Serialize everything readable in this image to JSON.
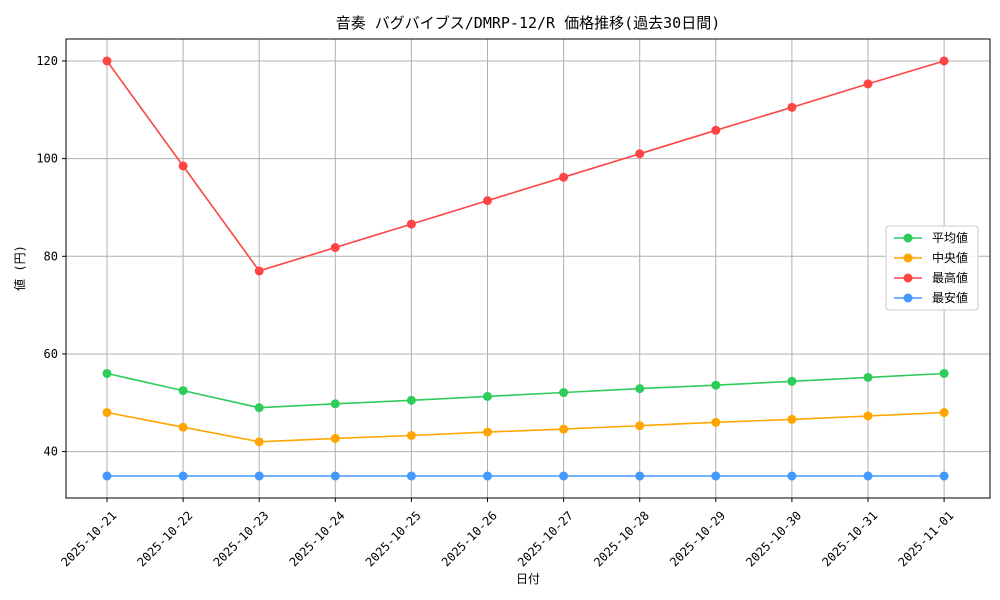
{
  "chart_data": {
    "type": "line",
    "title": "音奏 バグバイブス/DMRP-12/R 価格推移(過去30日間)",
    "xlabel": "日付",
    "ylabel": "値 (円)",
    "categories": [
      "2025-10-21",
      "2025-10-22",
      "2025-10-23",
      "2025-10-24",
      "2025-10-25",
      "2025-10-26",
      "2025-10-27",
      "2025-10-28",
      "2025-10-29",
      "2025-10-30",
      "2025-10-31",
      "2025-11-01"
    ],
    "ylim": [
      30.5,
      124.5
    ],
    "yticks": [
      40,
      60,
      80,
      100,
      120
    ],
    "grid": true,
    "legend_position": "center-right",
    "series": [
      {
        "name": "平均値",
        "color": "#2ecc5a",
        "values": [
          56,
          52.5,
          49,
          49.8,
          50.5,
          51.3,
          52.1,
          52.9,
          53.6,
          54.4,
          55.2,
          56
        ]
      },
      {
        "name": "中央値",
        "color": "#ffa500",
        "values": [
          48,
          45,
          42,
          42.7,
          43.3,
          44,
          44.6,
          45.3,
          46,
          46.6,
          47.3,
          48
        ]
      },
      {
        "name": "最高値",
        "color": "#ff4444",
        "values": [
          120,
          98.5,
          77,
          81.8,
          86.6,
          91.4,
          96.2,
          101,
          105.8,
          110.5,
          115.3,
          120
        ]
      },
      {
        "name": "最安値",
        "color": "#4499ff",
        "values": [
          35,
          35,
          35,
          35,
          35,
          35,
          35,
          35,
          35,
          35,
          35,
          35
        ]
      }
    ]
  }
}
